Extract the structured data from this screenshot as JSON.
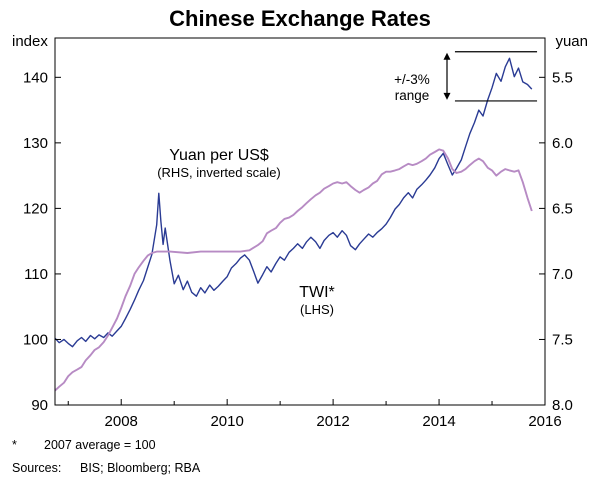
{
  "chart": {
    "title": "Chinese Exchange Rates",
    "left_axis_unit": "index",
    "right_axis_unit": "yuan",
    "footnote_marker": "*",
    "footnote_text": "2007 average = 100",
    "sources_label": "Sources:",
    "sources_text": "BIS; Bloomberg; RBA"
  },
  "chart_data": {
    "type": "line",
    "title": "Chinese Exchange Rates",
    "x_range": [
      2006.75,
      2016.0
    ],
    "x_ticks": [
      2008,
      2010,
      2012,
      2014,
      2016
    ],
    "x_minor_ticks": [
      2007,
      2008,
      2009,
      2010,
      2011,
      2012,
      2013,
      2014,
      2015,
      2016
    ],
    "grid": false,
    "left_axis": {
      "unit": "index",
      "min": 90,
      "max": 146,
      "ticks": [
        90,
        100,
        110,
        120,
        130,
        140
      ]
    },
    "right_axis": {
      "unit": "yuan",
      "inverted": true,
      "bottom_value": 8.0,
      "top_value": 5.2,
      "ticks": [
        8.0,
        7.5,
        7.0,
        6.5,
        6.0,
        5.5
      ]
    },
    "series": [
      {
        "name": "TWI",
        "label": "TWI*",
        "sublabel": "(LHS)",
        "axis": "left",
        "color": "#2a3b94",
        "points": [
          [
            2006.75,
            100.2
          ],
          [
            2006.83,
            99.5
          ],
          [
            2006.92,
            100.0
          ],
          [
            2007.0,
            99.4
          ],
          [
            2007.08,
            98.9
          ],
          [
            2007.17,
            99.8
          ],
          [
            2007.25,
            100.3
          ],
          [
            2007.33,
            99.7
          ],
          [
            2007.42,
            100.6
          ],
          [
            2007.5,
            100.1
          ],
          [
            2007.58,
            100.7
          ],
          [
            2007.67,
            100.3
          ],
          [
            2007.75,
            101.0
          ],
          [
            2007.83,
            100.5
          ],
          [
            2007.92,
            101.3
          ],
          [
            2008.0,
            102.0
          ],
          [
            2008.08,
            103.2
          ],
          [
            2008.17,
            104.6
          ],
          [
            2008.25,
            106.0
          ],
          [
            2008.33,
            107.5
          ],
          [
            2008.42,
            109.0
          ],
          [
            2008.5,
            111.0
          ],
          [
            2008.58,
            113.0
          ],
          [
            2008.67,
            117.5
          ],
          [
            2008.71,
            122.3
          ],
          [
            2008.75,
            118.0
          ],
          [
            2008.79,
            114.5
          ],
          [
            2008.83,
            117.0
          ],
          [
            2008.92,
            112.0
          ],
          [
            2009.0,
            108.5
          ],
          [
            2009.08,
            109.8
          ],
          [
            2009.17,
            107.6
          ],
          [
            2009.25,
            108.9
          ],
          [
            2009.33,
            107.2
          ],
          [
            2009.42,
            106.6
          ],
          [
            2009.5,
            107.9
          ],
          [
            2009.58,
            107.1
          ],
          [
            2009.67,
            108.3
          ],
          [
            2009.75,
            107.5
          ],
          [
            2009.83,
            108.1
          ],
          [
            2009.92,
            108.9
          ],
          [
            2010.0,
            109.6
          ],
          [
            2010.08,
            110.9
          ],
          [
            2010.17,
            111.6
          ],
          [
            2010.25,
            112.4
          ],
          [
            2010.33,
            112.9
          ],
          [
            2010.42,
            112.1
          ],
          [
            2010.5,
            110.4
          ],
          [
            2010.58,
            108.6
          ],
          [
            2010.67,
            109.9
          ],
          [
            2010.75,
            111.1
          ],
          [
            2010.83,
            110.3
          ],
          [
            2010.92,
            111.6
          ],
          [
            2011.0,
            112.6
          ],
          [
            2011.08,
            112.1
          ],
          [
            2011.17,
            113.3
          ],
          [
            2011.25,
            113.9
          ],
          [
            2011.33,
            114.6
          ],
          [
            2011.42,
            113.9
          ],
          [
            2011.5,
            114.9
          ],
          [
            2011.58,
            115.6
          ],
          [
            2011.67,
            114.9
          ],
          [
            2011.75,
            113.9
          ],
          [
            2011.83,
            115.1
          ],
          [
            2011.92,
            115.9
          ],
          [
            2012.0,
            116.3
          ],
          [
            2012.08,
            115.6
          ],
          [
            2012.17,
            116.6
          ],
          [
            2012.25,
            115.9
          ],
          [
            2012.33,
            114.3
          ],
          [
            2012.42,
            113.7
          ],
          [
            2012.5,
            114.6
          ],
          [
            2012.58,
            115.3
          ],
          [
            2012.67,
            116.1
          ],
          [
            2012.75,
            115.6
          ],
          [
            2012.83,
            116.3
          ],
          [
            2012.92,
            116.9
          ],
          [
            2013.0,
            117.6
          ],
          [
            2013.08,
            118.6
          ],
          [
            2013.17,
            119.9
          ],
          [
            2013.25,
            120.6
          ],
          [
            2013.33,
            121.6
          ],
          [
            2013.42,
            122.4
          ],
          [
            2013.5,
            121.6
          ],
          [
            2013.58,
            122.9
          ],
          [
            2013.67,
            123.6
          ],
          [
            2013.75,
            124.3
          ],
          [
            2013.83,
            125.1
          ],
          [
            2013.92,
            126.2
          ],
          [
            2014.0,
            127.6
          ],
          [
            2014.08,
            128.4
          ],
          [
            2014.17,
            126.6
          ],
          [
            2014.25,
            125.1
          ],
          [
            2014.33,
            126.1
          ],
          [
            2014.42,
            127.4
          ],
          [
            2014.5,
            129.4
          ],
          [
            2014.58,
            131.4
          ],
          [
            2014.67,
            133.1
          ],
          [
            2014.75,
            135.0
          ],
          [
            2014.83,
            134.1
          ],
          [
            2014.92,
            136.6
          ],
          [
            2015.0,
            138.4
          ],
          [
            2015.08,
            140.6
          ],
          [
            2015.17,
            139.4
          ],
          [
            2015.25,
            141.6
          ],
          [
            2015.33,
            142.9
          ],
          [
            2015.42,
            140.1
          ],
          [
            2015.5,
            141.4
          ],
          [
            2015.58,
            139.3
          ],
          [
            2015.67,
            138.9
          ],
          [
            2015.75,
            138.2
          ]
        ]
      },
      {
        "name": "Yuan per US$",
        "label": "Yuan per US$",
        "sublabel": "(RHS, inverted scale)",
        "axis": "right",
        "color": "#b78bc4",
        "points": [
          [
            2006.75,
            7.89
          ],
          [
            2006.83,
            7.86
          ],
          [
            2006.92,
            7.83
          ],
          [
            2007.0,
            7.78
          ],
          [
            2007.08,
            7.75
          ],
          [
            2007.17,
            7.73
          ],
          [
            2007.25,
            7.71
          ],
          [
            2007.33,
            7.66
          ],
          [
            2007.42,
            7.62
          ],
          [
            2007.5,
            7.58
          ],
          [
            2007.58,
            7.56
          ],
          [
            2007.67,
            7.52
          ],
          [
            2007.75,
            7.47
          ],
          [
            2007.83,
            7.41
          ],
          [
            2007.92,
            7.34
          ],
          [
            2008.0,
            7.26
          ],
          [
            2008.08,
            7.17
          ],
          [
            2008.17,
            7.09
          ],
          [
            2008.25,
            7.0
          ],
          [
            2008.33,
            6.95
          ],
          [
            2008.42,
            6.9
          ],
          [
            2008.5,
            6.86
          ],
          [
            2008.58,
            6.84
          ],
          [
            2008.67,
            6.83
          ],
          [
            2008.92,
            6.83
          ],
          [
            2009.25,
            6.84
          ],
          [
            2009.5,
            6.83
          ],
          [
            2009.75,
            6.83
          ],
          [
            2010.0,
            6.83
          ],
          [
            2010.25,
            6.83
          ],
          [
            2010.42,
            6.82
          ],
          [
            2010.5,
            6.8
          ],
          [
            2010.58,
            6.78
          ],
          [
            2010.67,
            6.75
          ],
          [
            2010.75,
            6.69
          ],
          [
            2010.83,
            6.67
          ],
          [
            2010.92,
            6.65
          ],
          [
            2011.0,
            6.61
          ],
          [
            2011.08,
            6.58
          ],
          [
            2011.17,
            6.57
          ],
          [
            2011.25,
            6.55
          ],
          [
            2011.33,
            6.52
          ],
          [
            2011.42,
            6.49
          ],
          [
            2011.5,
            6.46
          ],
          [
            2011.58,
            6.43
          ],
          [
            2011.67,
            6.4
          ],
          [
            2011.75,
            6.38
          ],
          [
            2011.83,
            6.35
          ],
          [
            2011.92,
            6.33
          ],
          [
            2012.0,
            6.31
          ],
          [
            2012.08,
            6.3
          ],
          [
            2012.17,
            6.31
          ],
          [
            2012.25,
            6.3
          ],
          [
            2012.33,
            6.33
          ],
          [
            2012.42,
            6.36
          ],
          [
            2012.5,
            6.38
          ],
          [
            2012.58,
            6.36
          ],
          [
            2012.67,
            6.34
          ],
          [
            2012.75,
            6.31
          ],
          [
            2012.83,
            6.29
          ],
          [
            2012.92,
            6.24
          ],
          [
            2013.0,
            6.22
          ],
          [
            2013.08,
            6.22
          ],
          [
            2013.17,
            6.21
          ],
          [
            2013.25,
            6.2
          ],
          [
            2013.33,
            6.18
          ],
          [
            2013.42,
            6.16
          ],
          [
            2013.5,
            6.17
          ],
          [
            2013.58,
            6.16
          ],
          [
            2013.67,
            6.14
          ],
          [
            2013.75,
            6.12
          ],
          [
            2013.83,
            6.09
          ],
          [
            2013.92,
            6.07
          ],
          [
            2014.0,
            6.05
          ],
          [
            2014.08,
            6.06
          ],
          [
            2014.17,
            6.12
          ],
          [
            2014.25,
            6.2
          ],
          [
            2014.33,
            6.23
          ],
          [
            2014.42,
            6.22
          ],
          [
            2014.5,
            6.2
          ],
          [
            2014.58,
            6.17
          ],
          [
            2014.67,
            6.14
          ],
          [
            2014.75,
            6.12
          ],
          [
            2014.83,
            6.14
          ],
          [
            2014.92,
            6.19
          ],
          [
            2015.0,
            6.21
          ],
          [
            2015.08,
            6.25
          ],
          [
            2015.17,
            6.22
          ],
          [
            2015.25,
            6.2
          ],
          [
            2015.33,
            6.21
          ],
          [
            2015.42,
            6.22
          ],
          [
            2015.5,
            6.21
          ],
          [
            2015.58,
            6.3
          ],
          [
            2015.67,
            6.42
          ],
          [
            2015.75,
            6.52
          ]
        ]
      }
    ],
    "annotations": {
      "band": {
        "label_line1": "+/-3%",
        "label_line2": "range",
        "upper_index": 143.9,
        "lower_index": 136.4,
        "x_start": 2014.3,
        "x_end": 2015.85,
        "arrow_x": 2014.15,
        "color": "#000000"
      }
    }
  }
}
